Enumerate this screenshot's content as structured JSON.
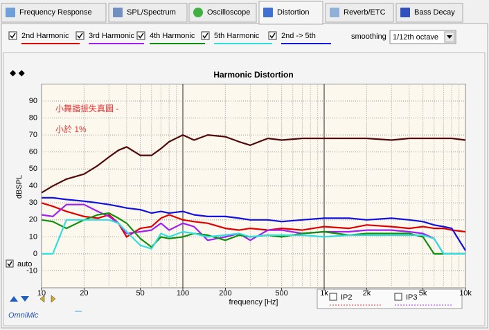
{
  "tabs": [
    "Frequency Response",
    "SPL/Spectrum",
    "Oscilloscope",
    "Distortion",
    "Reverb/ETC",
    "Bass Decay"
  ],
  "smoothing": {
    "label": "smoothing",
    "value": "1/12th octave"
  },
  "auto_label": "auto",
  "ip_labels": [
    "IP2",
    "IP3"
  ],
  "brand": "OmniMic",
  "chart_data": {
    "type": "line",
    "title": "Harmonic Distortion",
    "annotations": [
      "小舞諧振失真圖 -",
      "小於 1%"
    ],
    "xlabel": "frequency [Hz]",
    "ylabel": "dBSPL",
    "xscale": "log",
    "grid": true,
    "xlim": [
      10,
      10000
    ],
    "ylim": [
      -20,
      100
    ],
    "xticks": [
      10,
      20,
      50,
      100,
      200,
      500,
      {
        "value": 1000,
        "label": "1k"
      },
      {
        "value": 2000,
        "label": "2k"
      },
      {
        "value": 5000,
        "label": "5k"
      },
      {
        "value": 10000,
        "label": "10k"
      }
    ],
    "yticks": [
      -10,
      0,
      10,
      20,
      30,
      40,
      50,
      60,
      70,
      80,
      90
    ],
    "x": [
      10,
      12,
      15,
      20,
      25,
      30,
      35,
      40,
      50,
      60,
      70,
      80,
      100,
      120,
      150,
      200,
      250,
      300,
      400,
      500,
      700,
      1000,
      1500,
      2000,
      3000,
      4000,
      5000,
      6000,
      7000,
      8000,
      10000
    ],
    "series": [
      {
        "color": "#500808",
        "values": [
          36,
          40,
          44,
          47,
          52,
          57,
          61,
          63,
          58,
          58,
          62,
          66,
          70,
          67,
          70,
          69,
          66,
          64,
          68,
          67,
          68,
          68,
          68,
          68,
          67,
          68,
          68,
          68,
          68,
          68,
          67
        ]
      },
      {
        "name": "2nd Harmonic",
        "color": "#e00000",
        "values": [
          30,
          28,
          25,
          22,
          21,
          23,
          18,
          10,
          15,
          16,
          21,
          23,
          20,
          19,
          18,
          15,
          14,
          15,
          14,
          15,
          14,
          16,
          15,
          17,
          16,
          15,
          16,
          15,
          15,
          14,
          13
        ]
      },
      {
        "name": "3rd Harmonic",
        "color": "#a020f0",
        "values": [
          23,
          22,
          29,
          29,
          25,
          22,
          18,
          12,
          13,
          14,
          18,
          14,
          18,
          16,
          8,
          10,
          12,
          8,
          14,
          14,
          12,
          13,
          13,
          14,
          14,
          13,
          12,
          9,
          0,
          0,
          0
        ]
      },
      {
        "name": "4th Harmonic",
        "color": "#109010",
        "values": [
          20,
          19,
          15,
          20,
          23,
          24,
          21,
          18,
          9,
          4,
          10,
          9,
          10,
          12,
          11,
          8,
          11,
          10,
          11,
          10,
          12,
          13,
          11,
          12,
          12,
          12,
          10,
          0,
          0,
          0,
          0
        ]
      },
      {
        "name": "5th Harmonic",
        "color": "#30dede",
        "values": [
          0,
          0,
          20,
          20,
          20,
          20,
          18,
          13,
          5,
          3,
          12,
          10,
          13,
          12,
          10,
          11,
          12,
          10,
          11,
          11,
          11,
          10,
          11,
          11,
          11,
          11,
          11,
          9,
          0,
          0,
          0
        ]
      },
      {
        "name": "2nd -> 5th",
        "color": "#1010e0",
        "values": [
          33,
          33,
          32,
          31,
          30,
          29,
          28,
          27,
          26,
          24,
          25,
          24,
          25,
          23,
          22,
          22,
          21,
          20,
          20,
          19,
          20,
          21,
          21,
          20,
          21,
          20,
          19,
          17,
          16,
          15,
          2
        ]
      }
    ]
  }
}
